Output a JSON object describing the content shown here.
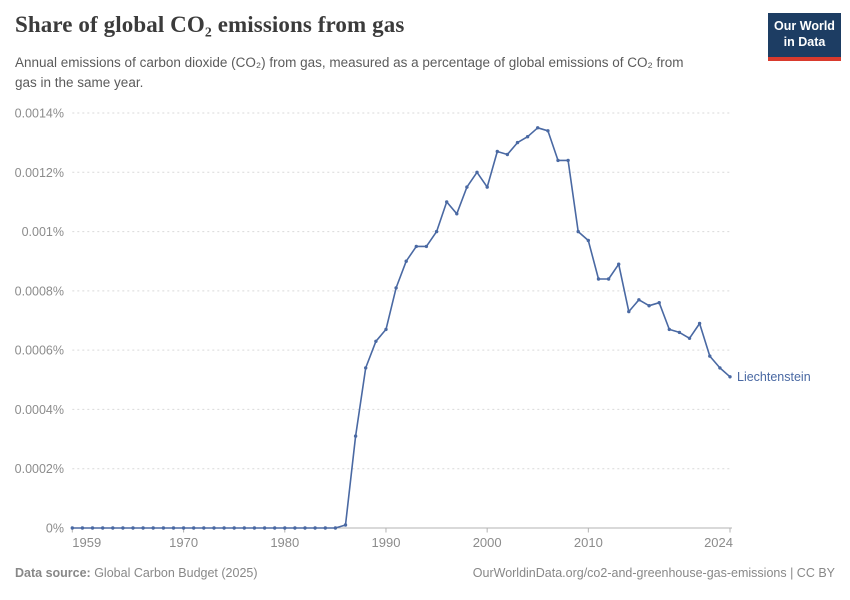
{
  "header": {
    "title": "Share of global CO₂ emissions from gas",
    "subtitle": "Annual emissions of carbon dioxide (CO₂) from gas, measured as a percentage of global emissions of CO₂ from gas in the same year.",
    "logo": {
      "line1": "Our World",
      "line2": "in Data",
      "bg_color": "#1d3d63",
      "accent_color": "#d93a2d"
    }
  },
  "chart_data": {
    "type": "line",
    "title": "Share of global CO₂ emissions from gas",
    "xlabel": "",
    "ylabel": "",
    "xlim": [
      1959,
      2024
    ],
    "ylim": [
      0,
      0.0014
    ],
    "grid": "horizontal-dashed",
    "legend_position": "end-of-line-label",
    "unit": "%",
    "x_ticks": [
      1959,
      1970,
      1980,
      1990,
      2000,
      2010,
      2024
    ],
    "y_ticks": [
      {
        "value": 0,
        "label": "0%"
      },
      {
        "value": 0.0002,
        "label": "0.0002%"
      },
      {
        "value": 0.0004,
        "label": "0.0004%"
      },
      {
        "value": 0.0006,
        "label": "0.0006%"
      },
      {
        "value": 0.0008,
        "label": "0.0008%"
      },
      {
        "value": 0.001,
        "label": "0.001%"
      },
      {
        "value": 0.0012,
        "label": "0.0012%"
      },
      {
        "value": 0.0014,
        "label": "0.0014%"
      }
    ],
    "series": [
      {
        "name": "Liechtenstein",
        "color": "#4a69a3",
        "x": [
          1959,
          1960,
          1961,
          1962,
          1963,
          1964,
          1965,
          1966,
          1967,
          1968,
          1969,
          1970,
          1971,
          1972,
          1973,
          1974,
          1975,
          1976,
          1977,
          1978,
          1979,
          1980,
          1981,
          1982,
          1983,
          1984,
          1985,
          1986,
          1987,
          1988,
          1989,
          1990,
          1991,
          1992,
          1993,
          1994,
          1995,
          1996,
          1997,
          1998,
          1999,
          2000,
          2001,
          2002,
          2003,
          2004,
          2005,
          2006,
          2007,
          2008,
          2009,
          2010,
          2011,
          2012,
          2013,
          2014,
          2015,
          2016,
          2017,
          2018,
          2019,
          2020,
          2021,
          2022,
          2023,
          2024
        ],
        "values": [
          0,
          0,
          0,
          0,
          0,
          0,
          0,
          0,
          0,
          0,
          0,
          0,
          0,
          0,
          0,
          0,
          0,
          0,
          0,
          0,
          0,
          0,
          0,
          0,
          0,
          0,
          0,
          1e-05,
          0.00031,
          0.00054,
          0.00063,
          0.00067,
          0.00081,
          0.0009,
          0.00095,
          0.00095,
          0.001,
          0.0011,
          0.00106,
          0.00115,
          0.0012,
          0.00115,
          0.00127,
          0.00126,
          0.0013,
          0.00132,
          0.00135,
          0.00134,
          0.00124,
          0.00124,
          0.001,
          0.00097,
          0.00084,
          0.00084,
          0.00089,
          0.00073,
          0.00077,
          0.00075,
          0.00076,
          0.00067,
          0.00066,
          0.00064,
          0.00069,
          0.00058,
          0.00054,
          0.00051
        ]
      }
    ],
    "colors": {
      "gridline": "#d9d9d9",
      "baseline": "#b3b3b3",
      "axis_text": "#8c8c8c"
    }
  },
  "footer": {
    "source_label": "Data source:",
    "source_text": " Global Carbon Budget (2025)",
    "link_text": "OurWorldinData.org/co2-and-greenhouse-gas-emissions | CC BY"
  }
}
